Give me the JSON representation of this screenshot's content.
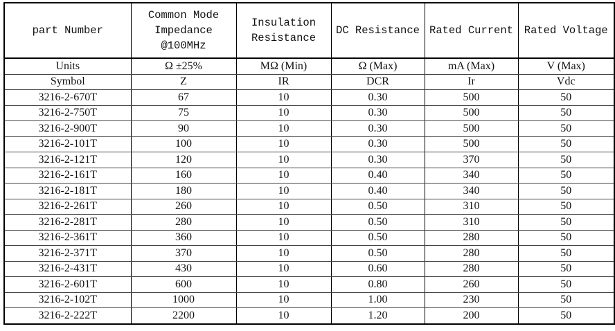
{
  "table": {
    "header": [
      "part Number",
      "Common Mode\nImpedance\n@100MHz",
      "Insulation\nResistance",
      "DC Resistance",
      "Rated Current",
      "Rated Voltage"
    ],
    "units": [
      "Units",
      "Ω ±25%",
      "MΩ (Min)",
      "Ω (Max)",
      "mA (Max)",
      "V (Max)"
    ],
    "symbols": [
      "Symbol",
      "Z",
      "IR",
      "DCR",
      "Ir",
      "Vdc"
    ],
    "rows": [
      [
        "3216-2-670T",
        "67",
        "10",
        "0.30",
        "500",
        "50"
      ],
      [
        "3216-2-750T",
        "75",
        "10",
        "0.30",
        "500",
        "50"
      ],
      [
        "3216-2-900T",
        "90",
        "10",
        "0.30",
        "500",
        "50"
      ],
      [
        "3216-2-101T",
        "100",
        "10",
        "0.30",
        "500",
        "50"
      ],
      [
        "3216-2-121T",
        "120",
        "10",
        "0.30",
        "370",
        "50"
      ],
      [
        "3216-2-161T",
        "160",
        "10",
        "0.40",
        "340",
        "50"
      ],
      [
        "3216-2-181T",
        "180",
        "10",
        "0.40",
        "340",
        "50"
      ],
      [
        "3216-2-261T",
        "260",
        "10",
        "0.50",
        "310",
        "50"
      ],
      [
        "3216-2-281T",
        "280",
        "10",
        "0.50",
        "310",
        "50"
      ],
      [
        "3216-2-361T",
        "360",
        "10",
        "0.50",
        "280",
        "50"
      ],
      [
        "3216-2-371T",
        "370",
        "10",
        "0.50",
        "280",
        "50"
      ],
      [
        "3216-2-431T",
        "430",
        "10",
        "0.60",
        "280",
        "50"
      ],
      [
        "3216-2-601T",
        "600",
        "10",
        "0.80",
        "260",
        "50"
      ],
      [
        "3216-2-102T",
        "1000",
        "10",
        "1.00",
        "230",
        "50"
      ],
      [
        "3216-2-222T",
        "2200",
        "10",
        "1.20",
        "200",
        "50"
      ]
    ]
  }
}
